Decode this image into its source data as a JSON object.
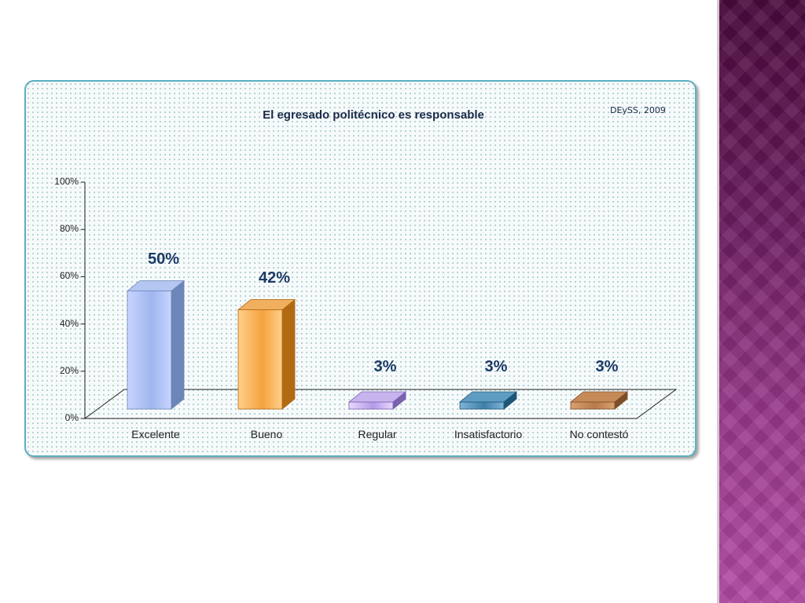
{
  "chart_data": {
    "type": "bar",
    "title": "El egresado politécnico es responsable",
    "source_note": "DEySS, 2009",
    "categories": [
      "Excelente",
      "Bueno",
      "Regular",
      "Insatisfactorio",
      "No contestó"
    ],
    "values": [
      50,
      42,
      3,
      3,
      3
    ],
    "value_labels": [
      "50%",
      "42%",
      "3%",
      "3%",
      "3%"
    ],
    "yticks": [
      "0%",
      "20%",
      "40%",
      "60%",
      "80%",
      "100%"
    ],
    "ylim": [
      0,
      100
    ],
    "bar_colors": [
      {
        "light": "#c8d4ff",
        "mid": "#9fb6ee",
        "side": "#6d86b8",
        "top": "#b4c6f2"
      },
      {
        "light": "#ffd08a",
        "mid": "#f3a23e",
        "side": "#b26a12",
        "top": "#f0b060"
      },
      {
        "light": "#e8d8ff",
        "mid": "#b59ae6",
        "side": "#7a62b0",
        "top": "#c7b4ee"
      },
      {
        "light": "#7fb4d6",
        "mid": "#3f7fa8",
        "side": "#1f5676",
        "top": "#5f9cc2"
      },
      {
        "light": "#d8a070",
        "mid": "#b87a4a",
        "side": "#7e4e2a",
        "top": "#c68a58"
      }
    ],
    "grid": false,
    "legend": "none"
  }
}
